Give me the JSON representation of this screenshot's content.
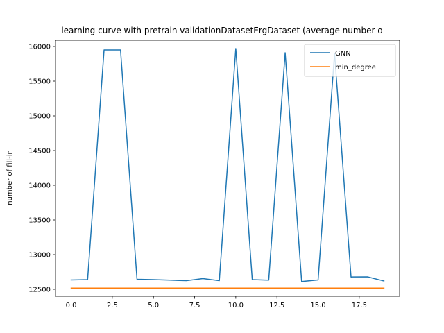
{
  "chart_data": {
    "type": "line",
    "title": "learning curve with pretrain validationDatasetErgDataset (average number o",
    "xlabel": "",
    "ylabel": "number of fill-in",
    "xlim": [
      -0.95,
      19.95
    ],
    "ylim": [
      12400,
      16090
    ],
    "xticks": [
      0.0,
      2.5,
      5.0,
      7.5,
      10.0,
      12.5,
      15.0,
      17.5
    ],
    "xtick_labels": [
      "0.0",
      "2.5",
      "5.0",
      "7.5",
      "10.0",
      "12.5",
      "15.0",
      "17.5"
    ],
    "yticks": [
      12500,
      13000,
      13500,
      14000,
      14500,
      15000,
      15500,
      16000
    ],
    "ytick_labels": [
      "12500",
      "13000",
      "13500",
      "14000",
      "14500",
      "15000",
      "15500",
      "16000"
    ],
    "grid": false,
    "legend_position": "top-right",
    "x": [
      0,
      1,
      2,
      3,
      4,
      5,
      6,
      7,
      8,
      9,
      10,
      11,
      12,
      13,
      14,
      15,
      16,
      17,
      18,
      19
    ],
    "series": [
      {
        "name": "GNN",
        "color": "#1f77b4",
        "values": [
          12635,
          12640,
          15950,
          15950,
          12645,
          12640,
          12632,
          12625,
          12655,
          12625,
          15970,
          12640,
          12632,
          15910,
          12612,
          12635,
          15900,
          12678,
          12680,
          12620
        ]
      },
      {
        "name": "min_degree",
        "color": "#ff7f0e",
        "values": [
          12518,
          12518,
          12518,
          12518,
          12518,
          12518,
          12518,
          12518,
          12518,
          12518,
          12518,
          12518,
          12518,
          12518,
          12518,
          12518,
          12518,
          12518,
          12518,
          12518
        ]
      }
    ]
  }
}
